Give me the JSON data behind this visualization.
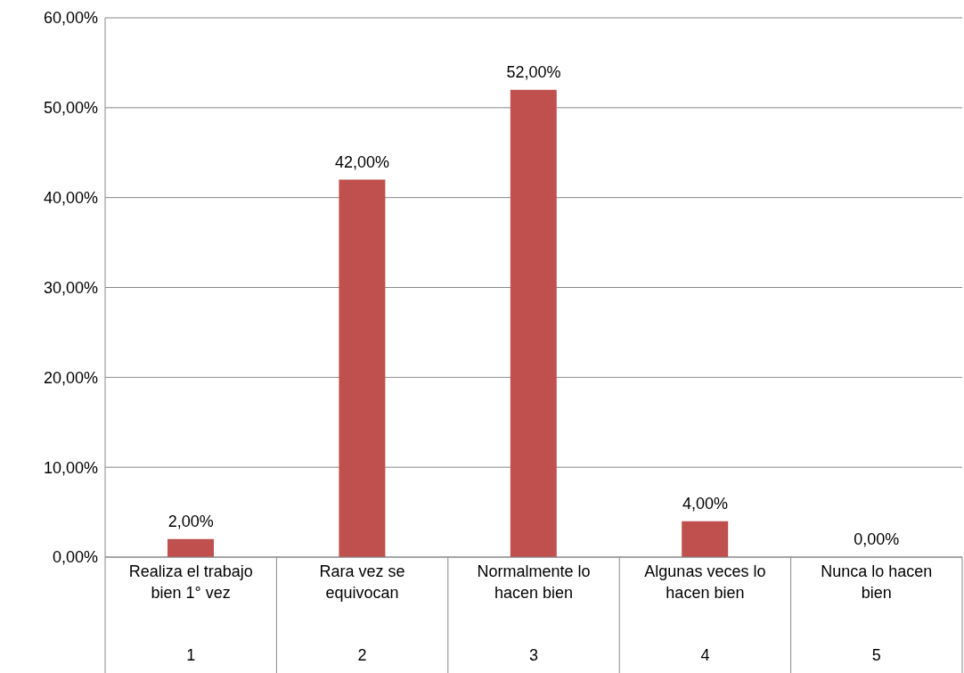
{
  "chart_data": {
    "type": "bar",
    "categories": [
      "Realiza el trabajo bien 1° vez\n1",
      "Rara vez se equivocan\n2",
      "Normalmente lo hacen bien\n3",
      "Algunas veces lo hacen bien\n4",
      "Nunca lo hacen bien\n5"
    ],
    "values": [
      2,
      42,
      52,
      4,
      0
    ],
    "value_labels": [
      "2,00%",
      "42,00%",
      "52,00%",
      "4,00%",
      "0,00%"
    ],
    "color": "#c0504d",
    "ylim": [
      0,
      60
    ],
    "yticks": [
      {
        "value": 0,
        "label": "0,00%"
      },
      {
        "value": 10,
        "label": "10,00%"
      },
      {
        "value": 20,
        "label": "20,00%"
      },
      {
        "value": 30,
        "label": "30,00%"
      },
      {
        "value": 40,
        "label": "40,00%"
      },
      {
        "value": 50,
        "label": "50,00%"
      },
      {
        "value": 60,
        "label": "60,00%"
      }
    ],
    "grid": "y",
    "legend": false
  }
}
